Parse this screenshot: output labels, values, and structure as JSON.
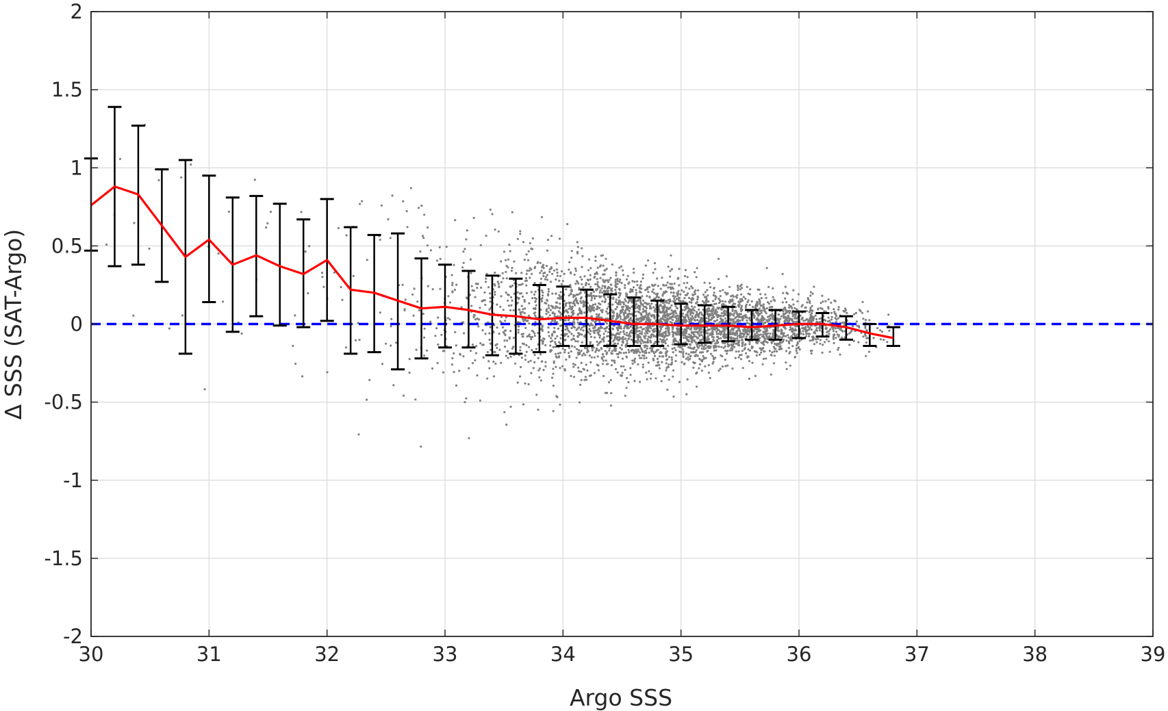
{
  "chart_data": {
    "type": "scatter",
    "title": "",
    "xlabel": "Argo SSS",
    "ylabel": "Δ SSS (SAT-Argo)",
    "xlim": [
      30,
      39
    ],
    "ylim": [
      -2,
      2
    ],
    "xticks": [
      "30",
      "31",
      "32",
      "33",
      "34",
      "35",
      "36",
      "37",
      "38",
      "39"
    ],
    "yticks": [
      "2",
      "1.5",
      "1",
      "0.5",
      "0",
      "-0.5",
      "-1",
      "-1.5",
      "-2"
    ],
    "grid": true,
    "legend": "none",
    "colors": {
      "scatter": "#808080",
      "mean_line": "#ff0000",
      "errorbar": "#000000",
      "zero_line": "#0000ff",
      "grid": "#d9d9d9",
      "axes": "#262626"
    },
    "zero_line": {
      "y": 0,
      "style": "dashed"
    },
    "mean_line": {
      "x": [
        30.0,
        30.2,
        30.4,
        30.6,
        30.8,
        31.0,
        31.2,
        31.4,
        31.6,
        31.8,
        32.0,
        32.2,
        32.4,
        32.6,
        32.8,
        33.0,
        33.2,
        33.4,
        33.6,
        33.8,
        34.0,
        34.2,
        34.4,
        34.6,
        34.8,
        35.0,
        35.2,
        35.4,
        35.6,
        35.8,
        36.0,
        36.2,
        36.4,
        36.6,
        36.8
      ],
      "y": [
        0.76,
        0.88,
        0.83,
        0.63,
        0.43,
        0.54,
        0.38,
        0.44,
        0.37,
        0.32,
        0.41,
        0.22,
        0.2,
        0.15,
        0.1,
        0.11,
        0.09,
        0.06,
        0.05,
        0.03,
        0.04,
        0.04,
        0.02,
        0.0,
        0.0,
        -0.01,
        -0.01,
        -0.01,
        -0.02,
        -0.01,
        0.0,
        0.0,
        -0.02,
        -0.06,
        -0.09
      ]
    },
    "errorbars": {
      "x": [
        30.0,
        30.2,
        30.4,
        30.6,
        30.8,
        31.0,
        31.2,
        31.4,
        31.6,
        31.8,
        32.0,
        32.2,
        32.4,
        32.6,
        32.8,
        33.0,
        33.2,
        33.4,
        33.6,
        33.8,
        34.0,
        34.2,
        34.4,
        34.6,
        34.8,
        35.0,
        35.2,
        35.4,
        35.6,
        35.8,
        36.0,
        36.2,
        36.4,
        36.6,
        36.8
      ],
      "lower": [
        0.47,
        0.37,
        0.38,
        0.27,
        -0.19,
        0.14,
        -0.05,
        0.05,
        -0.01,
        -0.02,
        0.02,
        -0.19,
        -0.18,
        -0.29,
        -0.22,
        -0.15,
        -0.15,
        -0.2,
        -0.19,
        -0.18,
        -0.14,
        -0.14,
        -0.14,
        -0.14,
        -0.14,
        -0.13,
        -0.12,
        -0.11,
        -0.1,
        -0.1,
        -0.09,
        -0.08,
        -0.1,
        -0.14,
        -0.14
      ],
      "upper": [
        1.06,
        1.39,
        1.27,
        0.99,
        1.05,
        0.95,
        0.81,
        0.82,
        0.77,
        0.67,
        0.8,
        0.62,
        0.57,
        0.58,
        0.42,
        0.38,
        0.34,
        0.31,
        0.29,
        0.25,
        0.24,
        0.22,
        0.19,
        0.17,
        0.15,
        0.13,
        0.12,
        0.11,
        0.09,
        0.09,
        0.08,
        0.07,
        0.05,
        0.0,
        -0.02
      ]
    },
    "scatter_bins": {
      "x_center": [
        30.1,
        30.3,
        30.5,
        30.7,
        30.9,
        31.1,
        31.3,
        31.5,
        31.7,
        31.9,
        32.1,
        32.3,
        32.5,
        32.7,
        32.9,
        33.1,
        33.3,
        33.5,
        33.7,
        33.9,
        34.1,
        34.3,
        34.5,
        34.7,
        34.9,
        35.1,
        35.3,
        35.5,
        35.7,
        35.9,
        36.1,
        36.3,
        36.5,
        36.7
      ],
      "mean": [
        0.82,
        0.85,
        0.72,
        0.53,
        0.48,
        0.46,
        0.41,
        0.4,
        0.34,
        0.36,
        0.31,
        0.21,
        0.17,
        0.12,
        0.1,
        0.1,
        0.07,
        0.05,
        0.04,
        0.04,
        0.04,
        0.03,
        0.01,
        0.0,
        0.0,
        -0.01,
        -0.01,
        -0.01,
        -0.02,
        -0.01,
        0.0,
        -0.01,
        -0.04,
        -0.08
      ],
      "spread": [
        0.3,
        0.5,
        0.45,
        0.4,
        0.6,
        0.4,
        0.4,
        0.38,
        0.38,
        0.33,
        0.38,
        0.38,
        0.36,
        0.4,
        0.31,
        0.26,
        0.23,
        0.24,
        0.23,
        0.21,
        0.19,
        0.18,
        0.16,
        0.15,
        0.14,
        0.13,
        0.12,
        0.11,
        0.1,
        0.1,
        0.08,
        0.08,
        0.07,
        0.06
      ],
      "relative_density": [
        0.006,
        0.006,
        0.006,
        0.006,
        0.006,
        0.006,
        0.008,
        0.01,
        0.012,
        0.015,
        0.02,
        0.03,
        0.04,
        0.06,
        0.09,
        0.13,
        0.2,
        0.28,
        0.4,
        0.52,
        0.65,
        0.78,
        0.9,
        0.97,
        1.0,
        0.98,
        0.92,
        0.85,
        0.75,
        0.6,
        0.45,
        0.28,
        0.12,
        0.03
      ]
    }
  }
}
